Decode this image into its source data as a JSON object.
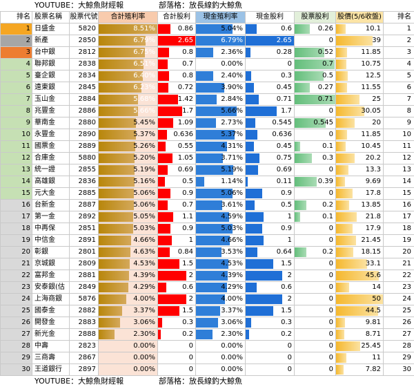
{
  "banner": {
    "youtube": "YOUTUBE：大鯨魚財經報",
    "blog": "部落格：放長線釣大鯨魚"
  },
  "headers": {
    "rank": "排名",
    "name": "股票名稱",
    "code": "股票代號",
    "total_yield": "合計殖利率",
    "total_div": "合計股利",
    "cash_yield": "現金殖利率",
    "cash_div": "現金股利",
    "stock_div": "股票股利",
    "price": "股價(5/6收盤)",
    "rank2": "排名"
  },
  "colors": {
    "rank_gold": "#f5a623",
    "rank_silver": "#a6a6a6",
    "rank_bronze": "#ed7d31",
    "rank_green": "#c6e0b4",
    "rank_gray": "#d9d9d9"
  },
  "scales": {
    "total_yield_max": 8.51,
    "total_div_max": 2.65,
    "cash_yield_max": 6.79,
    "cash_div_max": 2.65,
    "stock_div_max": 0.71,
    "price_max": 50
  },
  "rows": [
    {
      "rank": "1",
      "name": "日盛金",
      "code": "5820",
      "ty": "8.51%",
      "td": "0.86",
      "cy": "5.04%",
      "cd": "0.6",
      "sd": "0.26",
      "pr": "10.1",
      "r2": "1",
      "tyv": 8.51,
      "tdv": 0.86,
      "cyv": 5.04,
      "cdv": 0.6,
      "sdv": 0.26,
      "prv": 10.1
    },
    {
      "rank": "2",
      "name": "新產",
      "code": "2850",
      "ty": "6.79%",
      "td": "2.65",
      "cy": "6.79%",
      "cd": "2.65",
      "sd": "0",
      "pr": "39",
      "r2": "2",
      "tyv": 6.79,
      "tdv": 2.65,
      "cyv": 6.79,
      "cdv": 2.65,
      "sdv": 0,
      "prv": 39
    },
    {
      "rank": "3",
      "name": "台中銀",
      "code": "2812",
      "ty": "6.75%",
      "td": "0.8",
      "cy": "2.36%",
      "cd": "0.28",
      "sd": "0.52",
      "pr": "11.85",
      "r2": "3",
      "tyv": 6.75,
      "tdv": 0.8,
      "cyv": 2.36,
      "cdv": 0.28,
      "sdv": 0.52,
      "prv": 11.85
    },
    {
      "rank": "4",
      "name": "聯邦銀",
      "code": "2838",
      "ty": "6.51%",
      "td": "0.7",
      "cy": "0.00%",
      "cd": "0",
      "sd": "0.7",
      "pr": "10.75",
      "r2": "4",
      "tyv": 6.51,
      "tdv": 0.7,
      "cyv": 0,
      "cdv": 0,
      "sdv": 0.7,
      "prv": 10.75
    },
    {
      "rank": "5",
      "name": "臺企銀",
      "code": "2834",
      "ty": "6.40%",
      "td": "0.8",
      "cy": "2.40%",
      "cd": "0.3",
      "sd": "0.5",
      "pr": "12.5",
      "r2": "5",
      "tyv": 6.4,
      "tdv": 0.8,
      "cyv": 2.4,
      "cdv": 0.3,
      "sdv": 0.5,
      "prv": 12.5
    },
    {
      "rank": "6",
      "name": "遠東銀",
      "code": "2845",
      "ty": "6.23%",
      "td": "0.72",
      "cy": "3.90%",
      "cd": "0.45",
      "sd": "0.27",
      "pr": "11.55",
      "r2": "6",
      "tyv": 6.23,
      "tdv": 0.72,
      "cyv": 3.9,
      "cdv": 0.45,
      "sdv": 0.27,
      "prv": 11.55
    },
    {
      "rank": "7",
      "name": "玉山金",
      "code": "2884",
      "ty": "5.68%",
      "td": "1.42",
      "cy": "2.84%",
      "cd": "0.71",
      "sd": "0.71",
      "pr": "25",
      "r2": "7",
      "tyv": 5.68,
      "tdv": 1.42,
      "cyv": 2.84,
      "cdv": 0.71,
      "sdv": 0.71,
      "prv": 25
    },
    {
      "rank": "8",
      "name": "兆豐金",
      "code": "2886",
      "ty": "5.66%",
      "td": "1.7",
      "cy": "5.66%",
      "cd": "1.7",
      "sd": "0",
      "pr": "30.05",
      "r2": "8",
      "tyv": 5.66,
      "tdv": 1.7,
      "cyv": 5.66,
      "cdv": 1.7,
      "sdv": 0,
      "prv": 30.05
    },
    {
      "rank": "9",
      "name": "華南金",
      "code": "2880",
      "ty": "5.45%",
      "td": "1.09",
      "cy": "2.73%",
      "cd": "0.545",
      "sd": "0.545",
      "pr": "20",
      "r2": "9",
      "tyv": 5.45,
      "tdv": 1.09,
      "cyv": 2.73,
      "cdv": 0.545,
      "sdv": 0.545,
      "prv": 20
    },
    {
      "rank": "10",
      "name": "永豐金",
      "code": "2890",
      "ty": "5.37%",
      "td": "0.636",
      "cy": "5.37%",
      "cd": "0.636",
      "sd": "0",
      "pr": "11.85",
      "r2": "10",
      "tyv": 5.37,
      "tdv": 0.636,
      "cyv": 5.37,
      "cdv": 0.636,
      "sdv": 0,
      "prv": 11.85
    },
    {
      "rank": "11",
      "name": "國票金",
      "code": "2889",
      "ty": "5.26%",
      "td": "0.55",
      "cy": "4.31%",
      "cd": "0.45",
      "sd": "0.1",
      "pr": "10.45",
      "r2": "11",
      "tyv": 5.26,
      "tdv": 0.55,
      "cyv": 4.31,
      "cdv": 0.45,
      "sdv": 0.1,
      "prv": 10.45
    },
    {
      "rank": "12",
      "name": "合庫金",
      "code": "5880",
      "ty": "5.20%",
      "td": "1.05",
      "cy": "3.71%",
      "cd": "0.75",
      "sd": "0.3",
      "pr": "20.2",
      "r2": "12",
      "tyv": 5.2,
      "tdv": 1.05,
      "cyv": 3.71,
      "cdv": 0.75,
      "sdv": 0.3,
      "prv": 20.2
    },
    {
      "rank": "13",
      "name": "統一證",
      "code": "2855",
      "ty": "5.19%",
      "td": "0.69",
      "cy": "5.19%",
      "cd": "0.69",
      "sd": "0",
      "pr": "13.3",
      "r2": "13",
      "tyv": 5.19,
      "tdv": 0.69,
      "cyv": 5.19,
      "cdv": 0.69,
      "sdv": 0,
      "prv": 13.3
    },
    {
      "rank": "14",
      "name": "高雄銀",
      "code": "2836",
      "ty": "5.16%",
      "td": "0.5",
      "cy": "1.14%",
      "cd": "0.11",
      "sd": "0.39",
      "pr": "9.69",
      "r2": "14",
      "tyv": 5.16,
      "tdv": 0.5,
      "cyv": 1.14,
      "cdv": 0.11,
      "sdv": 0.39,
      "prv": 9.69
    },
    {
      "rank": "15",
      "name": "元大金",
      "code": "2885",
      "ty": "5.06%",
      "td": "0.9",
      "cy": "5.06%",
      "cd": "0.9",
      "sd": "0",
      "pr": "17.8",
      "r2": "15",
      "tyv": 5.06,
      "tdv": 0.9,
      "cyv": 5.06,
      "cdv": 0.9,
      "sdv": 0,
      "prv": 17.8
    },
    {
      "rank": "16",
      "name": "台新金",
      "code": "2887",
      "ty": "5.06%",
      "td": "0.7",
      "cy": "3.61%",
      "cd": "0.5",
      "sd": "0.2",
      "pr": "13.85",
      "r2": "16",
      "tyv": 5.06,
      "tdv": 0.7,
      "cyv": 3.61,
      "cdv": 0.5,
      "sdv": 0.2,
      "prv": 13.85
    },
    {
      "rank": "17",
      "name": "第一金",
      "code": "2892",
      "ty": "5.05%",
      "td": "1.1",
      "cy": "4.59%",
      "cd": "1",
      "sd": "0.1",
      "pr": "21.8",
      "r2": "17",
      "tyv": 5.05,
      "tdv": 1.1,
      "cyv": 4.59,
      "cdv": 1,
      "sdv": 0.1,
      "prv": 21.8
    },
    {
      "rank": "18",
      "name": "中再保",
      "code": "2851",
      "ty": "5.03%",
      "td": "0.9",
      "cy": "5.03%",
      "cd": "0.9",
      "sd": "0",
      "pr": "17.9",
      "r2": "18",
      "tyv": 5.03,
      "tdv": 0.9,
      "cyv": 5.03,
      "cdv": 0.9,
      "sdv": 0,
      "prv": 17.9
    },
    {
      "rank": "19",
      "name": "中信金",
      "code": "2891",
      "ty": "4.66%",
      "td": "1",
      "cy": "4.66%",
      "cd": "1",
      "sd": "0",
      "pr": "21.45",
      "r2": "19",
      "tyv": 4.66,
      "tdv": 1,
      "cyv": 4.66,
      "cdv": 1,
      "sdv": 0,
      "prv": 21.45
    },
    {
      "rank": "20",
      "name": "彰銀",
      "code": "2801",
      "ty": "4.63%",
      "td": "0.84",
      "cy": "3.53%",
      "cd": "0.64",
      "sd": "0.2",
      "pr": "18.15",
      "r2": "20",
      "tyv": 4.63,
      "tdv": 0.84,
      "cyv": 3.53,
      "cdv": 0.64,
      "sdv": 0.2,
      "prv": 18.15
    },
    {
      "rank": "21",
      "name": "京城銀",
      "code": "2809",
      "ty": "4.53%",
      "td": "1.5",
      "cy": "4.53%",
      "cd": "1.5",
      "sd": "0",
      "pr": "33.1",
      "r2": "21",
      "tyv": 4.53,
      "tdv": 1.5,
      "cyv": 4.53,
      "cdv": 1.5,
      "sdv": 0,
      "prv": 33.1
    },
    {
      "rank": "22",
      "name": "富邦金",
      "code": "2881",
      "ty": "4.39%",
      "td": "2",
      "cy": "4.39%",
      "cd": "2",
      "sd": "0",
      "pr": "45.6",
      "r2": "22",
      "tyv": 4.39,
      "tdv": 2,
      "cyv": 4.39,
      "cdv": 2,
      "sdv": 0,
      "prv": 45.6
    },
    {
      "rank": "23",
      "name": "安泰銀(估",
      "code": "2849",
      "ty": "4.29%",
      "td": "0.6",
      "cy": "4.29%",
      "cd": "0.6",
      "sd": "0",
      "pr": "14",
      "r2": "23",
      "tyv": 4.29,
      "tdv": 0.6,
      "cyv": 4.29,
      "cdv": 0.6,
      "sdv": 0,
      "prv": 14
    },
    {
      "rank": "24",
      "name": "上海商銀",
      "code": "5876",
      "ty": "4.00%",
      "td": "2",
      "cy": "4.00%",
      "cd": "2",
      "sd": "0",
      "pr": "50",
      "r2": "24",
      "tyv": 4,
      "tdv": 2,
      "cyv": 4,
      "cdv": 2,
      "sdv": 0,
      "prv": 50
    },
    {
      "rank": "25",
      "name": "國泰金",
      "code": "2882",
      "ty": "3.37%",
      "td": "1.5",
      "cy": "3.37%",
      "cd": "1.5",
      "sd": "0",
      "pr": "44.5",
      "r2": "25",
      "tyv": 3.37,
      "tdv": 1.5,
      "cyv": 3.37,
      "cdv": 1.5,
      "sdv": 0,
      "prv": 44.5
    },
    {
      "rank": "26",
      "name": "開發金",
      "code": "2883",
      "ty": "3.06%",
      "td": "0.3",
      "cy": "3.06%",
      "cd": "0.3",
      "sd": "0",
      "pr": "9.81",
      "r2": "26",
      "tyv": 3.06,
      "tdv": 0.3,
      "cyv": 3.06,
      "cdv": 0.3,
      "sdv": 0,
      "prv": 9.81
    },
    {
      "rank": "27",
      "name": "新光金",
      "code": "2888",
      "ty": "2.30%",
      "td": "0.2",
      "cy": "2.30%",
      "cd": "0.2",
      "sd": "0",
      "pr": "8.71",
      "r2": "27",
      "tyv": 2.3,
      "tdv": 0.2,
      "cyv": 2.3,
      "cdv": 0.2,
      "sdv": 0,
      "prv": 8.71
    },
    {
      "rank": "28",
      "name": "中壽",
      "code": "2823",
      "ty": "0.00%",
      "td": "0",
      "cy": "0.00%",
      "cd": "0",
      "sd": "0",
      "pr": "25.45",
      "r2": "28",
      "tyv": 0,
      "tdv": 0,
      "cyv": 0,
      "cdv": 0,
      "sdv": 0,
      "prv": 25.45
    },
    {
      "rank": "29",
      "name": "三商壽",
      "code": "2867",
      "ty": "0.00%",
      "td": "0",
      "cy": "0.00%",
      "cd": "0",
      "sd": "0",
      "pr": "11",
      "r2": "29",
      "tyv": 0,
      "tdv": 0,
      "cyv": 0,
      "cdv": 0,
      "sdv": 0,
      "prv": 11
    },
    {
      "rank": "30",
      "name": "王道銀行",
      "code": "2897",
      "ty": "0.00%",
      "td": "0",
      "cy": "0.00%",
      "cd": "0",
      "sd": "0",
      "pr": "7.82",
      "r2": "30",
      "tyv": 0,
      "tdv": 0,
      "cyv": 0,
      "cdv": 0,
      "sdv": 0,
      "prv": 7.82
    }
  ]
}
